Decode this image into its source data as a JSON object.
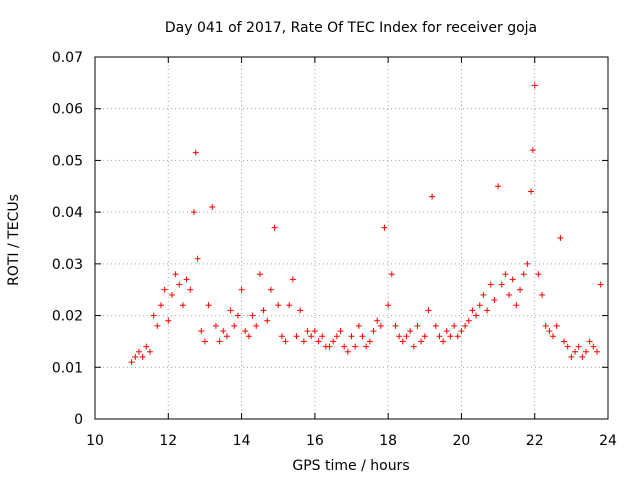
{
  "chart_data": {
    "type": "scatter",
    "title": "Day 041 of 2017, Rate Of TEC Index for receiver goja",
    "xlabel": "GPS time / hours",
    "ylabel": "ROTI / TECUs",
    "xlim": [
      10,
      24
    ],
    "ylim": [
      0,
      0.07
    ],
    "x_ticks": [
      10,
      12,
      14,
      16,
      18,
      20,
      22,
      24
    ],
    "x_tick_labels": [
      "10",
      "12",
      "14",
      "16",
      "18",
      "20",
      "22",
      "24"
    ],
    "y_ticks": [
      0,
      0.01,
      0.02,
      0.03,
      0.04,
      0.05,
      0.06,
      0.07
    ],
    "y_tick_labels": [
      "0",
      "0.01",
      "0.02",
      "0.03",
      "0.04",
      "0.05",
      "0.06",
      "0.07"
    ],
    "grid": true,
    "marker": "+",
    "series": [
      {
        "name": "ROTI",
        "color": "#ff0000",
        "x": [
          11.0,
          11.1,
          11.2,
          11.3,
          11.4,
          11.5,
          11.6,
          11.7,
          11.8,
          11.9,
          12.0,
          12.1,
          12.2,
          12.3,
          12.4,
          12.5,
          12.6,
          12.7,
          12.75,
          12.8,
          12.9,
          13.0,
          13.1,
          13.2,
          13.3,
          13.4,
          13.5,
          13.6,
          13.7,
          13.8,
          13.9,
          14.0,
          14.1,
          14.2,
          14.3,
          14.4,
          14.5,
          14.6,
          14.7,
          14.8,
          14.9,
          15.0,
          15.1,
          15.2,
          15.3,
          15.4,
          15.5,
          15.6,
          15.7,
          15.8,
          15.9,
          16.0,
          16.1,
          16.2,
          16.3,
          16.4,
          16.5,
          16.6,
          16.7,
          16.8,
          16.9,
          17.0,
          17.1,
          17.2,
          17.3,
          17.4,
          17.5,
          17.6,
          17.7,
          17.8,
          17.9,
          18.0,
          18.1,
          18.2,
          18.3,
          18.4,
          18.5,
          18.6,
          18.7,
          18.8,
          18.9,
          19.0,
          19.1,
          19.2,
          19.3,
          19.4,
          19.5,
          19.6,
          19.7,
          19.8,
          19.9,
          20.0,
          20.1,
          20.2,
          20.3,
          20.4,
          20.5,
          20.6,
          20.7,
          20.8,
          20.9,
          21.0,
          21.1,
          21.2,
          21.3,
          21.4,
          21.5,
          21.6,
          21.7,
          21.8,
          21.9,
          21.95,
          22.0,
          22.1,
          22.2,
          22.3,
          22.4,
          22.5,
          22.6,
          22.7,
          22.8,
          22.9,
          23.0,
          23.1,
          23.2,
          23.3,
          23.4,
          23.5,
          23.6,
          23.7,
          23.8
        ],
        "y": [
          0.011,
          0.012,
          0.013,
          0.012,
          0.014,
          0.013,
          0.02,
          0.018,
          0.022,
          0.025,
          0.019,
          0.024,
          0.028,
          0.026,
          0.022,
          0.027,
          0.025,
          0.04,
          0.0515,
          0.031,
          0.017,
          0.015,
          0.022,
          0.041,
          0.018,
          0.015,
          0.017,
          0.016,
          0.021,
          0.018,
          0.02,
          0.025,
          0.017,
          0.016,
          0.02,
          0.018,
          0.028,
          0.021,
          0.019,
          0.025,
          0.037,
          0.022,
          0.016,
          0.015,
          0.022,
          0.027,
          0.016,
          0.021,
          0.015,
          0.017,
          0.016,
          0.017,
          0.015,
          0.016,
          0.014,
          0.014,
          0.015,
          0.016,
          0.017,
          0.014,
          0.013,
          0.016,
          0.014,
          0.018,
          0.016,
          0.014,
          0.015,
          0.017,
          0.019,
          0.018,
          0.037,
          0.022,
          0.028,
          0.018,
          0.016,
          0.015,
          0.016,
          0.017,
          0.014,
          0.018,
          0.015,
          0.016,
          0.021,
          0.043,
          0.018,
          0.016,
          0.015,
          0.017,
          0.016,
          0.018,
          0.016,
          0.017,
          0.018,
          0.019,
          0.021,
          0.02,
          0.022,
          0.024,
          0.021,
          0.026,
          0.023,
          0.045,
          0.026,
          0.028,
          0.024,
          0.027,
          0.022,
          0.025,
          0.028,
          0.03,
          0.044,
          0.052,
          0.0645,
          0.028,
          0.024,
          0.018,
          0.017,
          0.016,
          0.018,
          0.035,
          0.015,
          0.014,
          0.012,
          0.013,
          0.014,
          0.012,
          0.013,
          0.015,
          0.014,
          0.013,
          0.026
        ]
      }
    ]
  }
}
